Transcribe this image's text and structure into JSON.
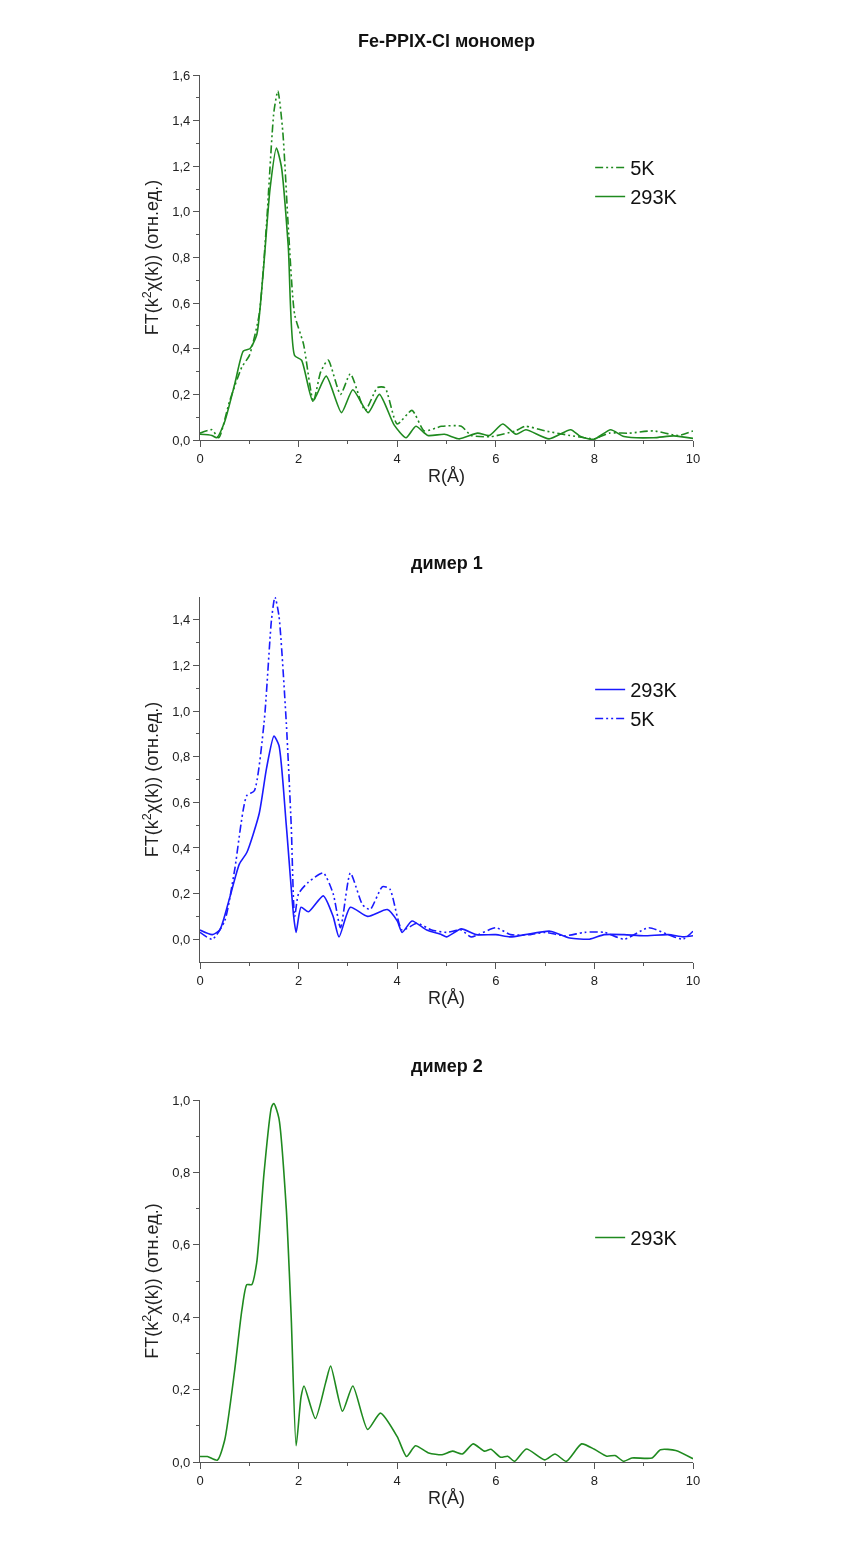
{
  "chart_data": [
    {
      "type": "line",
      "title": "Fe-PPIX-Cl мономер",
      "xlabel": "R(Å)",
      "ylabel": "FT(k$^{2}$χ(k)) (отн.ед.)",
      "xlim": [
        0,
        10
      ],
      "xticks": [
        0,
        2,
        4,
        6,
        8,
        10
      ],
      "ylim": [
        0,
        1.6
      ],
      "yticks": [
        {
          "value": 0,
          "label": "0,0"
        },
        {
          "value": 0.2,
          "label": "0,2"
        },
        {
          "value": 0.4,
          "label": "0,4"
        },
        {
          "value": 0.6,
          "label": "0,6"
        },
        {
          "value": 0.8,
          "label": "0,8"
        },
        {
          "value": 1.0,
          "label": "1,0"
        },
        {
          "value": 1.2,
          "label": "1,2"
        },
        {
          "value": 1.4,
          "label": "1,4"
        },
        {
          "value": 1.6,
          "label": "1,6"
        }
      ],
      "legend": "top right",
      "marker": "none",
      "series": [
        {
          "name": "5K",
          "color": "#1f8a1f",
          "line_style": "dashed",
          "x": [
            0,
            0.24,
            0.38,
            0.6,
            0.85,
            1.0,
            1.2,
            1.35,
            1.5,
            1.58,
            1.68,
            1.8,
            1.92,
            2.1,
            2.3,
            2.45,
            2.6,
            2.85,
            3.05,
            3.35,
            3.6,
            3.75,
            4.0,
            4.3,
            4.55,
            4.9,
            5.3,
            5.5,
            5.9,
            6.4,
            6.6,
            7.0,
            7.5,
            7.8,
            8.0,
            8.3,
            8.7,
            9.2,
            9.7,
            10
          ],
          "values": [
            0.03,
            0.045,
            0.01,
            0.17,
            0.32,
            0.37,
            0.55,
            0.95,
            1.44,
            1.53,
            1.35,
            0.9,
            0.55,
            0.42,
            0.17,
            0.3,
            0.35,
            0.2,
            0.29,
            0.13,
            0.23,
            0.23,
            0.07,
            0.13,
            0.04,
            0.06,
            0.06,
            0.02,
            0.015,
            0.04,
            0.06,
            0.04,
            0.02,
            0.01,
            0.005,
            0.03,
            0.03,
            0.04,
            0.02,
            0.04
          ]
        },
        {
          "name": "293K",
          "color": "#1f8a1f",
          "line_style": "solid",
          "x": [
            0,
            0.24,
            0.34,
            0.5,
            0.71,
            0.88,
            1.01,
            1.15,
            1.28,
            1.42,
            1.55,
            1.65,
            1.79,
            1.92,
            2.06,
            2.29,
            2.56,
            2.87,
            3.1,
            3.41,
            3.64,
            3.94,
            4.18,
            4.38,
            4.62,
            4.96,
            5.26,
            5.63,
            5.87,
            6.14,
            6.41,
            6.61,
            7.08,
            7.52,
            7.72,
            7.99,
            8.33,
            8.6,
            9.2,
            9.61,
            10
          ],
          "values": [
            0.025,
            0.02,
            0.01,
            0.08,
            0.25,
            0.39,
            0.4,
            0.46,
            0.73,
            1.1,
            1.28,
            1.2,
            0.85,
            0.37,
            0.35,
            0.17,
            0.28,
            0.12,
            0.22,
            0.12,
            0.2,
            0.065,
            0.01,
            0.06,
            0.02,
            0.025,
            0.005,
            0.03,
            0.02,
            0.07,
            0.025,
            0.045,
            0.005,
            0.045,
            0.015,
            0.003,
            0.045,
            0.015,
            0.01,
            0.018,
            0.007
          ]
        }
      ]
    },
    {
      "type": "line",
      "title": "димер 1",
      "xlabel": "R(Å)",
      "ylabel": "FT(k$^{2}$χ(k)) (отн.ед.)",
      "xlim": [
        0,
        10
      ],
      "xticks": [
        0,
        2,
        4,
        6,
        8,
        10
      ],
      "ylim": [
        -0.1,
        1.5
      ],
      "yticks": [
        {
          "value": 0,
          "label": "0,0"
        },
        {
          "value": 0.2,
          "label": "0,2"
        },
        {
          "value": 0.4,
          "label": "0,4"
        },
        {
          "value": 0.6,
          "label": "0,6"
        },
        {
          "value": 0.8,
          "label": "0,8"
        },
        {
          "value": 1.0,
          "label": "1,0"
        },
        {
          "value": 1.2,
          "label": "1,2"
        },
        {
          "value": 1.4,
          "label": "1,4"
        }
      ],
      "legend": "top right",
      "marker": "none",
      "series": [
        {
          "name": "293K",
          "color": "#1a1aff",
          "line_style": "solid",
          "x": [
            0,
            0.25,
            0.4,
            0.6,
            0.8,
            0.95,
            1.2,
            1.35,
            1.5,
            1.6,
            1.75,
            1.9,
            1.95,
            2.05,
            2.2,
            2.5,
            2.7,
            2.82,
            3.05,
            3.4,
            3.8,
            4.0,
            4.1,
            4.3,
            4.6,
            4.9,
            5.0,
            5.3,
            5.6,
            6.0,
            6.3,
            6.6,
            7.1,
            7.5,
            7.9,
            8.2,
            8.6,
            9.0,
            9.5,
            9.8,
            10
          ],
          "values": [
            0.04,
            0.02,
            0.04,
            0.18,
            0.33,
            0.38,
            0.55,
            0.75,
            0.89,
            0.85,
            0.5,
            0.1,
            0.03,
            0.14,
            0.12,
            0.19,
            0.1,
            0.01,
            0.14,
            0.1,
            0.13,
            0.08,
            0.03,
            0.08,
            0.04,
            0.02,
            0.01,
            0.045,
            0.02,
            0.02,
            0.01,
            0.02,
            0.035,
            0.005,
            0.0,
            0.02,
            0.02,
            0.015,
            0.02,
            0.01,
            0.015
          ]
        },
        {
          "name": "5K",
          "color": "#1a1aff",
          "line_style": "dashed",
          "x": [
            0,
            0.25,
            0.5,
            0.7,
            0.95,
            1.1,
            1.3,
            1.45,
            1.52,
            1.6,
            1.75,
            1.85,
            1.92,
            2.0,
            2.2,
            2.5,
            2.7,
            2.85,
            3.05,
            3.3,
            3.45,
            3.7,
            3.85,
            4.1,
            4.4,
            4.7,
            5.0,
            5.3,
            5.5,
            6.0,
            6.3,
            6.7,
            7.0,
            7.4,
            7.8,
            8.2,
            8.6,
            9.1,
            9.5,
            9.8,
            10
          ],
          "values": [
            0.03,
            0.0,
            0.08,
            0.3,
            0.63,
            0.65,
            0.95,
            1.4,
            1.5,
            1.42,
            0.95,
            0.5,
            0.1,
            0.2,
            0.25,
            0.29,
            0.2,
            0.05,
            0.29,
            0.15,
            0.13,
            0.23,
            0.22,
            0.04,
            0.07,
            0.04,
            0.03,
            0.04,
            0.01,
            0.05,
            0.02,
            0.02,
            0.03,
            0.015,
            0.03,
            0.03,
            0.0,
            0.05,
            0.02,
            0.0,
            0.035
          ]
        }
      ]
    },
    {
      "type": "line",
      "title": "димер 2",
      "xlabel": "R(Å)",
      "ylabel": "FT(k$^{2}$χ(k)) (отн.ед.)",
      "xlim": [
        0,
        10
      ],
      "xticks": [
        0,
        2,
        4,
        6,
        8,
        10
      ],
      "ylim": [
        0,
        1.0
      ],
      "yticks": [
        {
          "value": 0,
          "label": "0,0"
        },
        {
          "value": 0.2,
          "label": "0,2"
        },
        {
          "value": 0.4,
          "label": "0,4"
        },
        {
          "value": 0.6,
          "label": "0,6"
        },
        {
          "value": 0.8,
          "label": "0,8"
        },
        {
          "value": 1.0,
          "label": "1,0"
        }
      ],
      "legend": "right",
      "marker": "none",
      "series": [
        {
          "name": "293K",
          "color": "#1f8a1f",
          "line_style": "solid",
          "x": [
            0,
            0.15,
            0.35,
            0.5,
            0.7,
            0.85,
            0.95,
            1.05,
            1.15,
            1.3,
            1.45,
            1.5,
            1.6,
            1.75,
            1.85,
            1.95,
            2.05,
            2.11,
            2.34,
            2.55,
            2.65,
            2.89,
            3.1,
            3.4,
            3.66,
            4.0,
            4.19,
            4.37,
            4.64,
            4.91,
            5.12,
            5.32,
            5.54,
            5.77,
            5.9,
            6.1,
            6.24,
            6.38,
            6.62,
            6.99,
            7.2,
            7.43,
            7.74,
            8.0,
            8.25,
            8.42,
            8.59,
            8.76,
            9.17,
            9.34,
            9.65,
            10
          ],
          "values": [
            0.015,
            0.015,
            0.005,
            0.06,
            0.25,
            0.42,
            0.49,
            0.49,
            0.55,
            0.8,
            0.98,
            0.99,
            0.95,
            0.7,
            0.4,
            0.045,
            0.18,
            0.21,
            0.12,
            0.22,
            0.265,
            0.14,
            0.21,
            0.09,
            0.135,
            0.07,
            0.015,
            0.045,
            0.025,
            0.02,
            0.03,
            0.022,
            0.05,
            0.03,
            0.035,
            0.013,
            0.016,
            0.002,
            0.036,
            0.006,
            0.022,
            0.002,
            0.05,
            0.035,
            0.016,
            0.018,
            0.002,
            0.011,
            0.011,
            0.034,
            0.032,
            0.009
          ]
        }
      ]
    }
  ]
}
